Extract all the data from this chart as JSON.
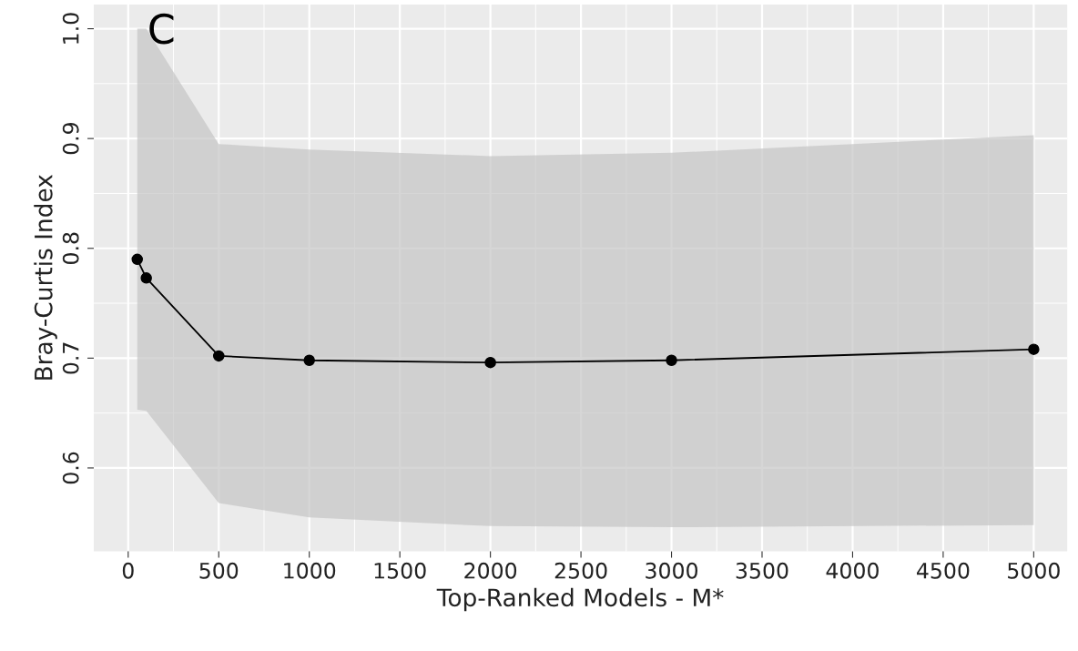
{
  "chart_data": {
    "type": "line",
    "xlabel": "Top-Ranked Models - M*",
    "ylabel": "Bray-Curtis Index",
    "annotations": [
      "C"
    ],
    "x": [
      50,
      100,
      500,
      1000,
      2000,
      3000,
      5000
    ],
    "series": [
      {
        "color": "#000000",
        "values": [
          0.79,
          0.773,
          0.702,
          0.698,
          0.696,
          0.698,
          0.708
        ],
        "lower": [
          0.653,
          0.652,
          0.568,
          0.555,
          0.547,
          0.546,
          0.548
        ],
        "upper": [
          1.0,
          1.0,
          0.895,
          0.89,
          0.884,
          0.887,
          0.903
        ]
      }
    ],
    "xlim": [
      -190,
      5185
    ],
    "ylim": [
      0.524,
      1.022
    ],
    "xticks": [
      0,
      500,
      1000,
      1500,
      2000,
      2500,
      3000,
      3500,
      4000,
      4500,
      5000
    ],
    "yticks": [
      {
        "value": 0.6,
        "label": "0.6"
      },
      {
        "value": 0.7,
        "label": "0.7"
      },
      {
        "value": 0.8,
        "label": "0.8"
      },
      {
        "value": 0.9,
        "label": "0.9"
      },
      {
        "value": 1.0,
        "label": "1.0"
      }
    ],
    "grid": true,
    "marker": "circle",
    "line_style": "solid"
  }
}
